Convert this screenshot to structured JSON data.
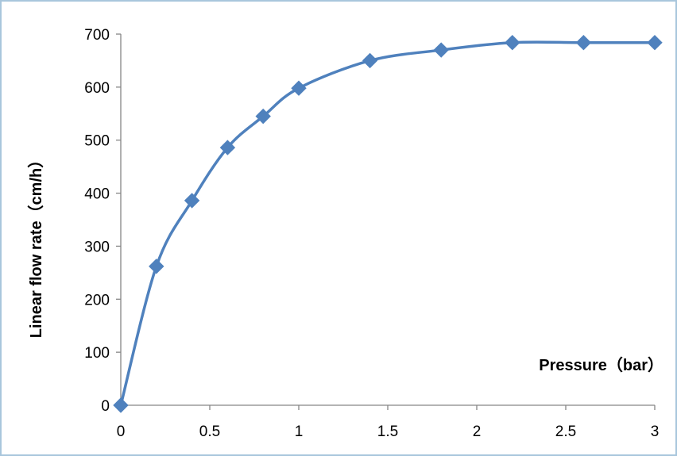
{
  "chart_data": {
    "type": "scatter",
    "title": "",
    "xlabel": "Pressure（bar）",
    "ylabel": "Linear flow rate（cm/h）",
    "xlim": [
      0,
      3
    ],
    "ylim": [
      0,
      700
    ],
    "xticks": [
      0,
      0.5,
      1,
      1.5,
      2,
      2.5,
      3
    ],
    "xtick_labels": [
      "0",
      "0.5",
      "1",
      "1.5",
      "2",
      "2.5",
      "3"
    ],
    "yticks": [
      0,
      100,
      200,
      300,
      400,
      500,
      600,
      700
    ],
    "ytick_labels": [
      "0",
      "100",
      "200",
      "300",
      "400",
      "500",
      "600",
      "700"
    ],
    "grid": false,
    "legend": "none",
    "smooth_line": true,
    "marker": "diamond",
    "series": [
      {
        "color": "#4f81bd",
        "x": [
          0,
          0.2,
          0.4,
          0.6,
          0.8,
          1.0,
          1.4,
          1.8,
          2.2,
          2.6,
          3.0
        ],
        "y": [
          0,
          262,
          386,
          486,
          545,
          598,
          650,
          670,
          684,
          684,
          684
        ]
      }
    ]
  }
}
